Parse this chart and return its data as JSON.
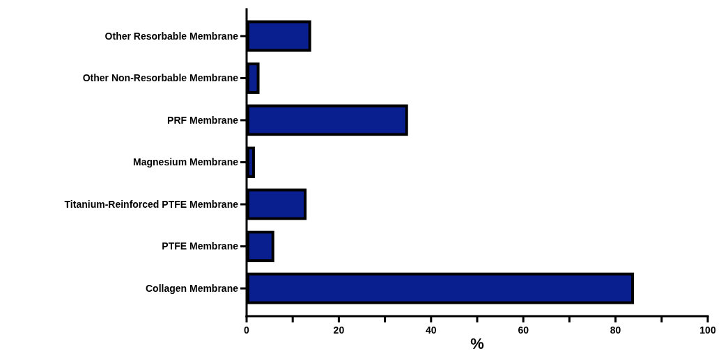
{
  "chart_data": {
    "type": "bar",
    "orientation": "horizontal",
    "xlabel": "%",
    "categories": [
      "Other Resorbable Membrane",
      "Other Non-Resorbable Membrane",
      "PRF Membrane",
      "Magnesium Membrane",
      "Titanium-Reinforced PTFE Membrane",
      "PTFE Membrane",
      "Collagen Membrane"
    ],
    "values": [
      14,
      2.8,
      35,
      1.8,
      13,
      6,
      84
    ],
    "color": "#0a1f8f",
    "xlim": [
      0,
      100
    ],
    "xticks": [
      0,
      {
        "value": 10,
        "label": null
      },
      20,
      {
        "value": 30,
        "label": null
      },
      40,
      {
        "value": 50,
        "label": null
      },
      60,
      {
        "value": 70,
        "label": null
      },
      80,
      {
        "value": 90,
        "label": null
      },
      100
    ],
    "grid": false
  }
}
